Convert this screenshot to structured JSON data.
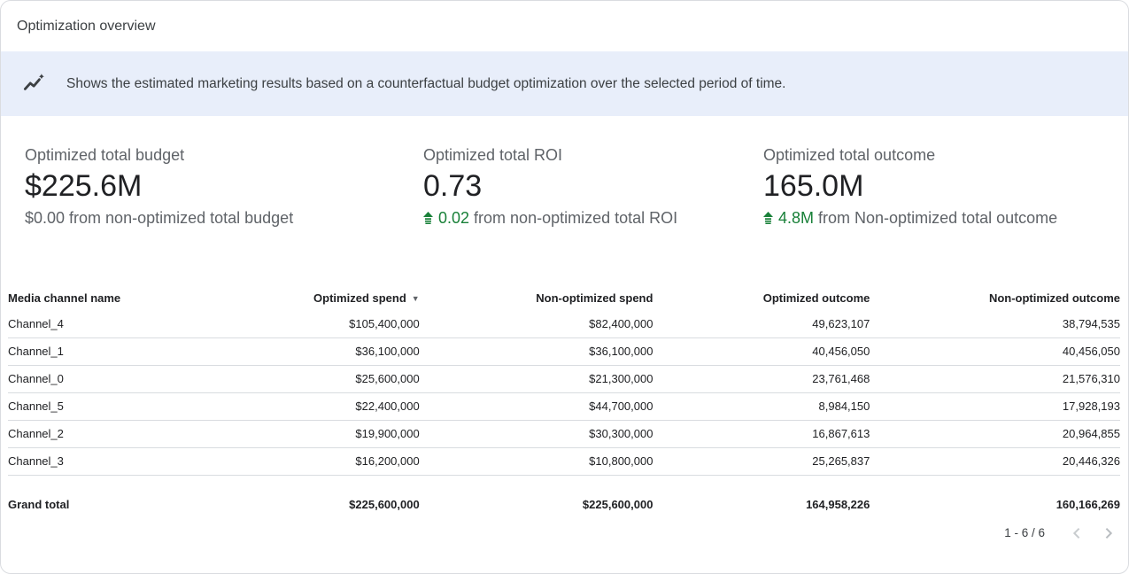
{
  "card": {
    "title": "Optimization overview"
  },
  "banner": {
    "icon": "insights-icon",
    "text": "Shows the estimated marketing results based on a counterfactual budget optimization over the selected period of time."
  },
  "kpis": [
    {
      "label": "Optimized total budget",
      "value": "$225.6M",
      "delta_value": "$0.00",
      "delta_suffix": " from non-optimized total budget",
      "delta_positive": false
    },
    {
      "label": "Optimized total ROI",
      "value": "0.73",
      "delta_value": "0.02",
      "delta_suffix": " from non-optimized total ROI",
      "delta_positive": true
    },
    {
      "label": "Optimized total outcome",
      "value": "165.0M",
      "delta_value": "4.8M",
      "delta_suffix": " from Non-optimized total outcome",
      "delta_positive": true
    }
  ],
  "table": {
    "columns": [
      "Media channel name",
      "Optimized spend",
      "Non-optimized spend",
      "Optimized outcome",
      "Non-optimized outcome"
    ],
    "sort_column_index": 1,
    "sort_icon": "▼",
    "rows": [
      [
        "Channel_4",
        "$105,400,000",
        "$82,400,000",
        "49,623,107",
        "38,794,535"
      ],
      [
        "Channel_1",
        "$36,100,000",
        "$36,100,000",
        "40,456,050",
        "40,456,050"
      ],
      [
        "Channel_0",
        "$25,600,000",
        "$21,300,000",
        "23,761,468",
        "21,576,310"
      ],
      [
        "Channel_5",
        "$22,400,000",
        "$44,700,000",
        "8,984,150",
        "17,928,193"
      ],
      [
        "Channel_2",
        "$19,900,000",
        "$30,300,000",
        "16,867,613",
        "20,964,855"
      ],
      [
        "Channel_3",
        "$16,200,000",
        "$10,800,000",
        "25,265,837",
        "20,446,326"
      ]
    ],
    "grand_total": [
      "Grand total",
      "$225,600,000",
      "$225,600,000",
      "164,958,226",
      "160,166,269"
    ]
  },
  "pagination": {
    "label": "1 - 6 / 6"
  },
  "colors": {
    "positive_green": "#188038",
    "banner_bg": "#E8EEFA",
    "border_gray": "#DADCE0"
  }
}
